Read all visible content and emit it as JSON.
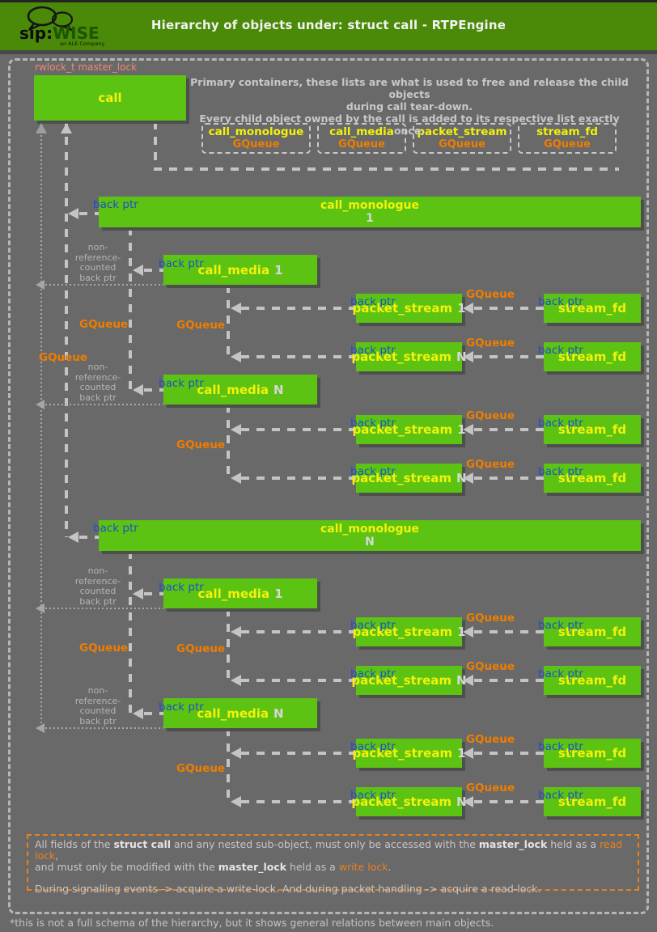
{
  "header": {
    "title": "Hierarchy of objects under: struct call - RTPEngine",
    "logo": {
      "sip": "sip:",
      "wise": "WISE",
      "tagline": "an ALE Company"
    }
  },
  "colors": {
    "header_green": "#4a8a08",
    "box_green": "#5cc313",
    "label_yellow": "#f2f20a",
    "queue_orange": "#ef7d00",
    "backptr_blue": "#1e4fc8",
    "lock_salmon": "#ee8877",
    "line_gray": "#c4c4c4",
    "background_gray": "#696969"
  },
  "diagram": {
    "master_lock_label": "rwlock_t master_lock",
    "call_label": "call",
    "primary_note_lines": [
      "Primary containers, these lists are what is used to free and release the child objects",
      "during call tear-down.",
      "Every child object owned by the call is added to its respective list exactly once."
    ],
    "legend": [
      {
        "name": "call_monologue",
        "queue": "GQueue"
      },
      {
        "name": "call_media",
        "queue": "GQueue"
      },
      {
        "name": "packet_stream",
        "queue": "GQueue"
      },
      {
        "name": "stream_fd",
        "queue": "GQueue"
      }
    ],
    "labels": {
      "back_ptr": "back ptr",
      "gqueue": "GQueue",
      "non_ref": [
        "non-",
        "reference-",
        "counted",
        "back ptr"
      ]
    },
    "monologues": [
      {
        "name": "call_monologue",
        "index": "1",
        "medias": [
          {
            "name": "call_media",
            "index": "1",
            "streams": [
              {
                "name": "packet_stream",
                "index": "1",
                "fd": "stream_fd"
              },
              {
                "name": "packet_stream",
                "index": "N",
                "fd": "stream_fd"
              }
            ]
          },
          {
            "name": "call_media",
            "index": "N",
            "streams": [
              {
                "name": "packet_stream",
                "index": "1",
                "fd": "stream_fd"
              },
              {
                "name": "packet_stream",
                "index": "N",
                "fd": "stream_fd"
              }
            ]
          }
        ]
      },
      {
        "name": "call_monologue",
        "index": "N",
        "medias": [
          {
            "name": "call_media",
            "index": "1",
            "streams": [
              {
                "name": "packet_stream",
                "index": "1",
                "fd": "stream_fd"
              },
              {
                "name": "packet_stream",
                "index": "N",
                "fd": "stream_fd"
              }
            ]
          },
          {
            "name": "call_media",
            "index": "N",
            "streams": [
              {
                "name": "packet_stream",
                "index": "1",
                "fd": "stream_fd"
              },
              {
                "name": "packet_stream",
                "index": "N",
                "fd": "stream_fd"
              }
            ]
          }
        ]
      }
    ]
  },
  "notes": {
    "lines": [
      [
        {
          "t": "All fields of the "
        },
        {
          "t": "struct call",
          "style": "bold"
        },
        {
          "t": " and any nested sub-object, must only be accessed with the "
        },
        {
          "t": "master_lock",
          "style": "bold"
        },
        {
          "t": " held as a "
        },
        {
          "t": "read lock",
          "style": "orange"
        },
        {
          "t": ","
        }
      ],
      [
        {
          "t": "and must only be modified with the "
        },
        {
          "t": "master_lock",
          "style": "bold"
        },
        {
          "t": " held as a "
        },
        {
          "t": "write lock",
          "style": "orange"
        },
        {
          "t": "."
        }
      ],
      [],
      [
        {
          "t": "During signalling events -> acquire a write-lock. And during packet handling -> acquire a read-lock."
        }
      ]
    ]
  },
  "footnote": "*this is not a full schema of the hierarchy, but it shows general relations between main objects."
}
